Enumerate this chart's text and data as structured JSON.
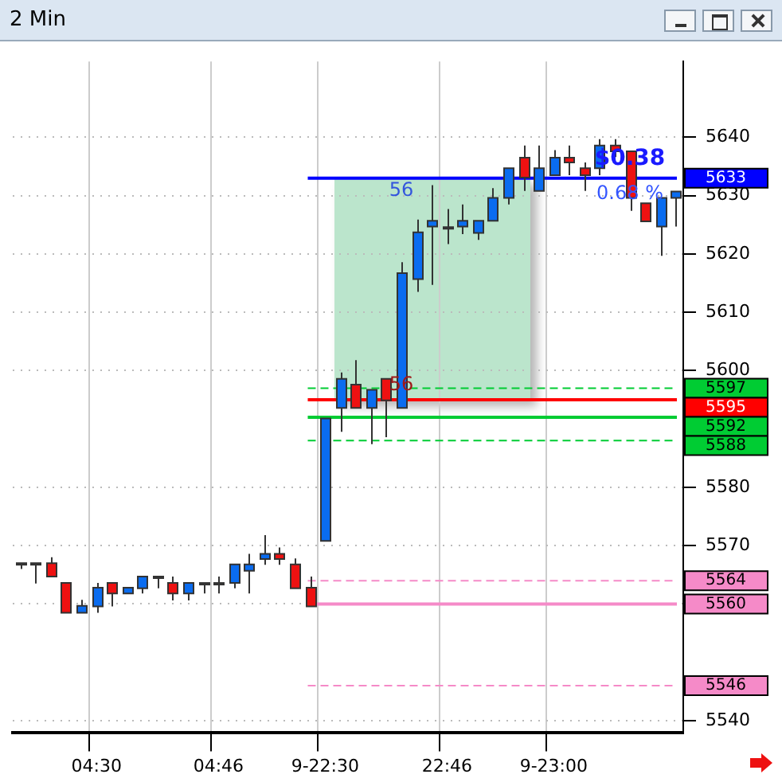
{
  "chart_data": {
    "type": "candlestick",
    "title": "2 Min",
    "categories": [
      null,
      null,
      null,
      null,
      null,
      "04:30",
      null,
      null,
      null,
      null,
      null,
      null,
      null,
      "04:46",
      null,
      null,
      null,
      null,
      null,
      null,
      "9-22:30",
      null,
      null,
      null,
      null,
      null,
      null,
      null,
      "22:46",
      null,
      null,
      null,
      null,
      null,
      null,
      "9-23:00",
      null,
      null,
      null,
      null,
      null,
      null,
      null,
      null
    ],
    "ohlc": [
      [
        5567,
        5567,
        5566,
        5567
      ],
      [
        5567,
        5567,
        5563.5,
        5567
      ],
      [
        5567,
        5568,
        5564.7,
        5564.7
      ],
      [
        5563.6,
        5563.6,
        5558.5,
        5558.5
      ],
      [
        5558.5,
        5560.7,
        5558.5,
        5559.7
      ],
      [
        5559.6,
        5563.6,
        5558.5,
        5562.8
      ],
      [
        5563.6,
        5563.6,
        5559.6,
        5561.8
      ],
      [
        5561.8,
        5562.8,
        5561.8,
        5562.8
      ],
      [
        5562.7,
        5564.7,
        5561.8,
        5564.7
      ],
      [
        5564.7,
        5564.7,
        5562.7,
        5564.7
      ],
      [
        5563.6,
        5564.7,
        5560.6,
        5561.8
      ],
      [
        5561.8,
        5563.6,
        5560.6,
        5563.6
      ],
      [
        5563.6,
        5563.6,
        5561.8,
        5563.6
      ],
      [
        5563.6,
        5564.7,
        5561.8,
        5563.6
      ],
      [
        5563.6,
        5566.8,
        5562.7,
        5566.8
      ],
      [
        5565.7,
        5568.6,
        5561.8,
        5566.8
      ],
      [
        5567.7,
        5571.8,
        5566.7,
        5568.6
      ],
      [
        5568.6,
        5569.7,
        5566.7,
        5567.7
      ],
      [
        5566.8,
        5567.8,
        5562.7,
        5562.7
      ],
      [
        5562.8,
        5564.7,
        5559.6,
        5559.6
      ],
      [
        5570.8,
        5591.8,
        5570.8,
        5591.8
      ],
      [
        5593.6,
        5599.7,
        5589.5,
        5598.6
      ],
      [
        5597.6,
        5601.8,
        5593.6,
        5593.6
      ],
      [
        5593.6,
        5596.7,
        5587.4,
        5596.7
      ],
      [
        5598.6,
        5598.6,
        5588.6,
        5594.9
      ],
      [
        5593.6,
        5618.6,
        5593.6,
        5616.7
      ],
      [
        5615.7,
        5625.9,
        5613.5,
        5623.7
      ],
      [
        5624.7,
        5631.8,
        5614.7,
        5625.7
      ],
      [
        5624.6,
        5627.7,
        5621.7,
        5624.6
      ],
      [
        5624.7,
        5628.5,
        5623.4,
        5625.7
      ],
      [
        5623.6,
        5625.7,
        5622.4,
        5625.7
      ],
      [
        5625.7,
        5631.3,
        5625.7,
        5629.6
      ],
      [
        5629.6,
        5634.7,
        5628.5,
        5634.7
      ],
      [
        5636.5,
        5638.6,
        5630.8,
        5633.1
      ],
      [
        5630.8,
        5638.6,
        5630.8,
        5634.7
      ],
      [
        5633.5,
        5637.8,
        5633.5,
        5636.5
      ],
      [
        5636.5,
        5638.6,
        5633.5,
        5635.7
      ],
      [
        5634.7,
        5635.7,
        5630.8,
        5633.5
      ],
      [
        5634.7,
        5639.7,
        5633.5,
        5638.6
      ],
      [
        5638.6,
        5639.7,
        5636.6,
        5637.6
      ],
      [
        5637.6,
        5637.6,
        5627.4,
        5629.6
      ],
      [
        5628.7,
        5628.7,
        5625.6,
        5625.6
      ],
      [
        5624.7,
        5629.6,
        5619.7,
        5629.6
      ],
      [
        5629.6,
        5630.7,
        5624.7,
        5630.7
      ]
    ],
    "ylim": [
      5538,
      5653
    ],
    "yticks": [
      5540,
      5560,
      5570,
      5580,
      5600,
      5610,
      5620,
      5630,
      5640
    ],
    "ref_lines": [
      {
        "axis": "y",
        "value": 5633,
        "label": "5633",
        "color": "#0000ff",
        "line_style": "solid"
      },
      {
        "axis": "y",
        "value": 5597,
        "label": "5597",
        "color": "#00cc33",
        "line_style": "dashed"
      },
      {
        "axis": "y",
        "value": 5595,
        "label": "5595",
        "color": "#ff0000",
        "line_style": "solid"
      },
      {
        "axis": "y",
        "value": 5592,
        "label": "5592",
        "color": "#00cc33",
        "line_style": "solid"
      },
      {
        "axis": "y",
        "value": 5588,
        "label": "5588",
        "color": "#00cc33",
        "line_style": "dashed"
      },
      {
        "axis": "y",
        "value": 5564,
        "label": "5564",
        "color": "#f58ac8",
        "line_style": "dashed"
      },
      {
        "axis": "y",
        "value": 5560,
        "label": "5560",
        "color": "#f58ac8",
        "line_style": "solid"
      },
      {
        "axis": "y",
        "value": 5546,
        "label": "5546",
        "color": "#f58ac8",
        "line_style": "dashed"
      }
    ],
    "annotations": [
      "56",
      "56",
      "$0.38",
      "0.68 %"
    ],
    "grid": true,
    "legend": false
  }
}
